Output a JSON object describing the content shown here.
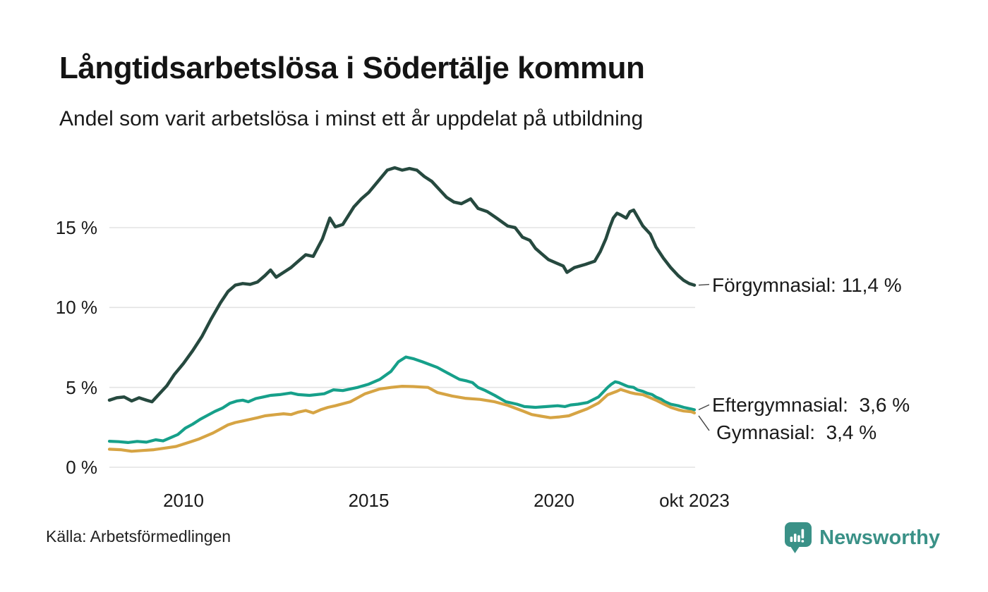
{
  "header": {
    "title": "Långtidsarbetslösa i Södertälje kommun",
    "subtitle": "Andel som varit arbetslösa i minst ett år uppdelat på utbildning"
  },
  "footer": {
    "source": "Källa: Arbetsförmedlingen"
  },
  "branding": {
    "name": "Newsworthy",
    "color": "#3a9187",
    "icon": "bar-chart-speech-bubble-icon"
  },
  "colors": {
    "grid": "#e3e3e3",
    "text": "#1a1a1a",
    "connector": "#444444",
    "background": "#ffffff"
  },
  "chart_data": {
    "type": "line",
    "title": "Långtidsarbetslösa i Södertälje kommun",
    "subtitle": "Andel som varit arbetslösa i minst ett år uppdelat på utbildning",
    "unit": "%",
    "grid": true,
    "legend_position": "end-of-line right labels",
    "x_axis": {
      "ticks": [
        "2010",
        "2015",
        "2020",
        "okt 2023"
      ],
      "tick_years": [
        2010,
        2015,
        2020,
        2023.79
      ],
      "range": [
        2008.0,
        2023.83
      ]
    },
    "y_axis": {
      "ticks": [
        "0 %",
        "5 %",
        "10 %",
        "15 %"
      ],
      "tick_values": [
        0,
        5,
        10,
        15
      ],
      "range": [
        0,
        19.6
      ]
    },
    "series": [
      {
        "name": "Förgymnasial",
        "color": "#26493f",
        "stroke_width": 4.5,
        "end_value": "11,4 %",
        "end_label": "Förgymnasial: 11,4 %",
        "x": [
          2008.0,
          2008.2,
          2008.4,
          2008.6,
          2008.8,
          2009.0,
          2009.15,
          2009.35,
          2009.55,
          2009.75,
          2010.0,
          2010.25,
          2010.5,
          2010.75,
          2011.0,
          2011.2,
          2011.4,
          2011.6,
          2011.8,
          2012.0,
          2012.2,
          2012.35,
          2012.5,
          2012.7,
          2012.9,
          2013.1,
          2013.3,
          2013.5,
          2013.75,
          2013.95,
          2014.1,
          2014.3,
          2014.6,
          2014.8,
          2015.0,
          2015.25,
          2015.5,
          2015.7,
          2015.9,
          2016.1,
          2016.3,
          2016.5,
          2016.7,
          2016.9,
          2017.1,
          2017.3,
          2017.5,
          2017.75,
          2017.95,
          2018.2,
          2018.45,
          2018.75,
          2018.95,
          2019.15,
          2019.35,
          2019.5,
          2019.65,
          2019.85,
          2020.05,
          2020.25,
          2020.35,
          2020.55,
          2020.85,
          2021.1,
          2021.25,
          2021.4,
          2021.5,
          2021.6,
          2021.7,
          2021.8,
          2021.95,
          2022.05,
          2022.15,
          2022.4,
          2022.6,
          2022.75,
          2022.95,
          2023.15,
          2023.35,
          2023.5,
          2023.65,
          2023.79
        ],
        "values": [
          4.2,
          4.35,
          4.4,
          4.15,
          4.35,
          4.2,
          4.1,
          4.6,
          5.1,
          5.8,
          6.5,
          7.3,
          8.2,
          9.3,
          10.3,
          11.0,
          11.4,
          11.5,
          11.45,
          11.6,
          12.0,
          12.35,
          11.9,
          12.2,
          12.5,
          12.9,
          13.3,
          13.2,
          14.3,
          15.6,
          15.05,
          15.2,
          16.3,
          16.8,
          17.2,
          17.9,
          18.6,
          18.75,
          18.6,
          18.7,
          18.6,
          18.2,
          17.9,
          17.4,
          16.9,
          16.6,
          16.5,
          16.8,
          16.2,
          16.0,
          15.6,
          15.1,
          15.0,
          14.4,
          14.2,
          13.7,
          13.4,
          13.0,
          12.8,
          12.6,
          12.2,
          12.5,
          12.7,
          12.9,
          13.5,
          14.3,
          15.0,
          15.6,
          15.9,
          15.8,
          15.6,
          16.0,
          16.1,
          15.1,
          14.6,
          13.8,
          13.1,
          12.5,
          12.0,
          11.7,
          11.5,
          11.4
        ]
      },
      {
        "name": "Eftergymnasial",
        "color": "#16a08a",
        "stroke_width": 4.2,
        "end_value": "3,6 %",
        "end_label": "Eftergymnasial:  3,6 %",
        "x": [
          2008.0,
          2008.25,
          2008.5,
          2008.75,
          2009.0,
          2009.25,
          2009.45,
          2009.65,
          2009.85,
          2010.05,
          2010.25,
          2010.45,
          2010.65,
          2010.85,
          2011.05,
          2011.25,
          2011.45,
          2011.6,
          2011.75,
          2011.95,
          2012.15,
          2012.35,
          2012.6,
          2012.9,
          2013.1,
          2013.4,
          2013.6,
          2013.8,
          2014.05,
          2014.3,
          2014.7,
          2015.0,
          2015.3,
          2015.6,
          2015.8,
          2016.0,
          2016.2,
          2016.45,
          2016.85,
          2017.25,
          2017.45,
          2017.65,
          2017.8,
          2017.95,
          2018.15,
          2018.4,
          2018.7,
          2019.0,
          2019.2,
          2019.5,
          2019.8,
          2020.1,
          2020.3,
          2020.45,
          2020.65,
          2020.9,
          2021.2,
          2021.45,
          2021.55,
          2021.65,
          2021.75,
          2021.9,
          2022.0,
          2022.15,
          2022.25,
          2022.4,
          2022.5,
          2022.65,
          2022.75,
          2022.9,
          2023.0,
          2023.15,
          2023.35,
          2023.5,
          2023.7,
          2023.79
        ],
        "values": [
          1.63,
          1.6,
          1.55,
          1.62,
          1.57,
          1.72,
          1.65,
          1.85,
          2.05,
          2.45,
          2.7,
          3.0,
          3.25,
          3.5,
          3.7,
          4.0,
          4.15,
          4.2,
          4.1,
          4.3,
          4.4,
          4.5,
          4.55,
          4.65,
          4.55,
          4.5,
          4.55,
          4.6,
          4.85,
          4.8,
          5.0,
          5.2,
          5.5,
          6.0,
          6.6,
          6.9,
          6.8,
          6.6,
          6.25,
          5.75,
          5.5,
          5.4,
          5.3,
          5.0,
          4.8,
          4.5,
          4.1,
          3.95,
          3.8,
          3.75,
          3.8,
          3.85,
          3.8,
          3.9,
          3.95,
          4.05,
          4.4,
          5.0,
          5.2,
          5.35,
          5.3,
          5.15,
          5.05,
          5.0,
          4.85,
          4.75,
          4.65,
          4.55,
          4.4,
          4.25,
          4.1,
          3.95,
          3.85,
          3.75,
          3.65,
          3.6
        ]
      },
      {
        "name": "Gymnasial",
        "color": "#d6a444",
        "stroke_width": 4.2,
        "end_value": "3,4 %",
        "end_label": "Gymnasial:  3,4 %",
        "x": [
          2008.0,
          2008.3,
          2008.6,
          2008.9,
          2009.2,
          2009.5,
          2009.8,
          2010.0,
          2010.2,
          2010.4,
          2010.6,
          2010.8,
          2011.0,
          2011.2,
          2011.4,
          2011.6,
          2011.8,
          2012.0,
          2012.2,
          2012.5,
          2012.7,
          2012.9,
          2013.1,
          2013.3,
          2013.5,
          2013.7,
          2013.9,
          2014.1,
          2014.5,
          2014.9,
          2015.3,
          2015.6,
          2015.9,
          2016.2,
          2016.6,
          2016.85,
          2017.25,
          2017.6,
          2018.0,
          2018.4,
          2018.75,
          2019.15,
          2019.4,
          2019.65,
          2019.9,
          2020.15,
          2020.4,
          2020.65,
          2020.9,
          2021.2,
          2021.45,
          2021.7,
          2021.8,
          2021.95,
          2022.05,
          2022.2,
          2022.4,
          2022.55,
          2022.75,
          2022.95,
          2023.15,
          2023.35,
          2023.5,
          2023.7,
          2023.79
        ],
        "values": [
          1.13,
          1.1,
          1.0,
          1.05,
          1.1,
          1.2,
          1.3,
          1.45,
          1.6,
          1.75,
          1.95,
          2.15,
          2.4,
          2.65,
          2.8,
          2.9,
          3.0,
          3.1,
          3.22,
          3.3,
          3.35,
          3.3,
          3.45,
          3.55,
          3.4,
          3.6,
          3.75,
          3.85,
          4.1,
          4.6,
          4.9,
          5.0,
          5.07,
          5.05,
          5.0,
          4.68,
          4.46,
          4.32,
          4.25,
          4.1,
          3.88,
          3.53,
          3.3,
          3.2,
          3.1,
          3.15,
          3.22,
          3.44,
          3.66,
          4.02,
          4.54,
          4.76,
          4.87,
          4.76,
          4.68,
          4.6,
          4.54,
          4.4,
          4.2,
          3.97,
          3.75,
          3.6,
          3.52,
          3.48,
          3.4
        ]
      }
    ]
  }
}
